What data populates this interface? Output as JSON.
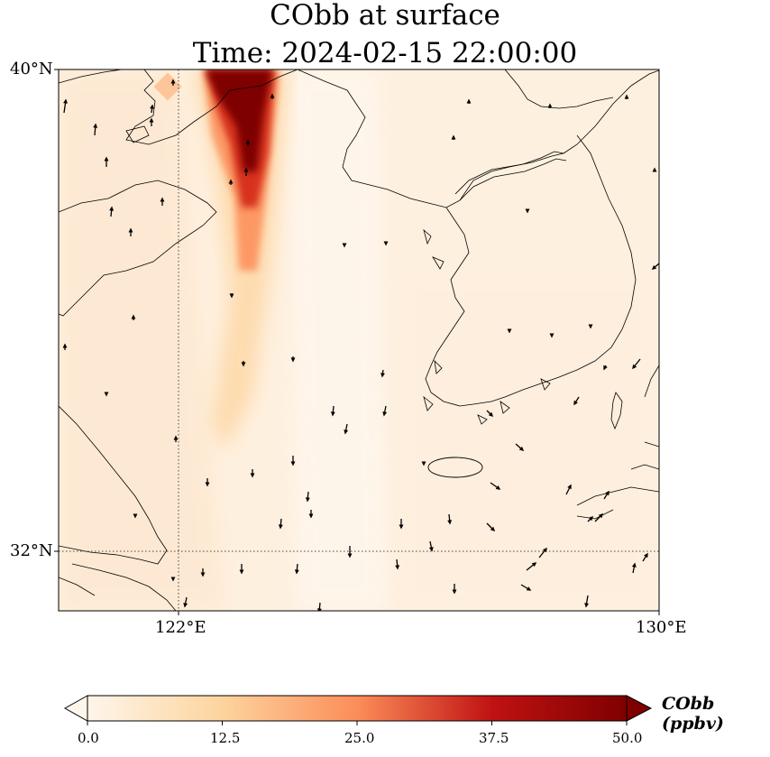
{
  "map": {
    "title_line1": "CObb at surface",
    "title_line2": "Time: 2024-02-15 22:00:00",
    "lat_labels": [
      "40°N",
      "32°N"
    ],
    "lon_labels": [
      "122°E",
      "130°E"
    ],
    "extent": {
      "lon_min": 120,
      "lon_max": 130,
      "lat_min": 31,
      "lat_max": 40
    },
    "gridlines": {
      "lons": [
        122,
        130
      ],
      "lats": [
        32,
        40
      ],
      "style": "dotted"
    },
    "field": {
      "variable": "CObb",
      "description": "plume of elevated CObb",
      "colormap": "OrRd-like",
      "colors": [
        "#fff5eb",
        "#fdd49e",
        "#fc8d59",
        "#d7301f",
        "#7f0000"
      ]
    },
    "colorbar": {
      "label": "CObb (ppbv)",
      "min": 0.0,
      "max": 50.0,
      "extend": "both",
      "ticks": [
        "0.0",
        "12.5",
        "25.0",
        "37.5",
        "50.0"
      ]
    },
    "wind_vectors_shown": true
  }
}
